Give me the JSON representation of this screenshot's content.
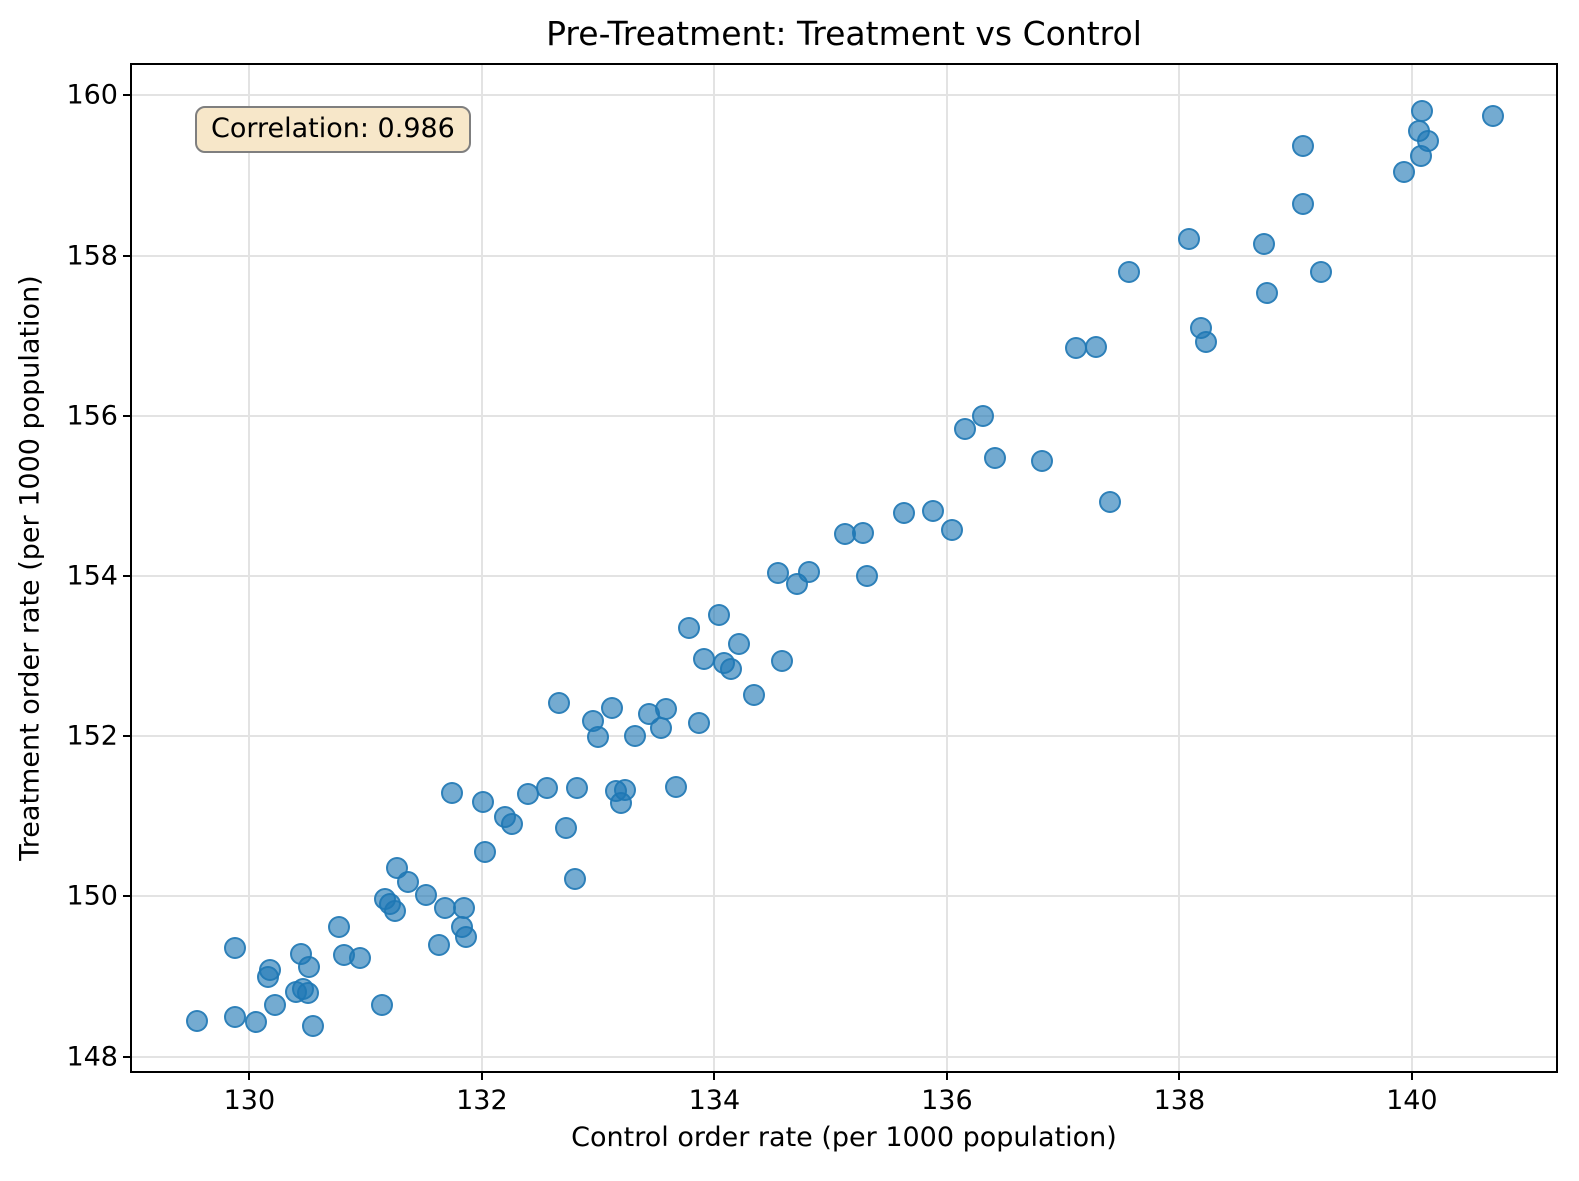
{
  "title": "Pre-Treatment: Treatment vs Control",
  "annotation": {
    "label": "Correlation: 0.986"
  },
  "chart_data": {
    "type": "scatter",
    "title": "Pre-Treatment: Treatment vs Control",
    "xlabel": "Control order rate (per 1000 population)",
    "ylabel": "Treatment order rate (per 1000 population)",
    "xlim": [
      128.99,
      141.24
    ],
    "ylim": [
      147.82,
      160.38
    ],
    "x_ticks": [
      130,
      132,
      134,
      136,
      138,
      140
    ],
    "y_ticks": [
      148,
      150,
      152,
      154,
      156,
      158,
      160
    ],
    "grid": true,
    "legend": "none",
    "marker_color": "#1f77b4",
    "marker_alpha": 0.62,
    "annotation_text": "Correlation: 0.986",
    "annotation_bg": "#f7e7c9",
    "points": [
      [
        129.55,
        148.44
      ],
      [
        129.88,
        148.49
      ],
      [
        130.06,
        148.43
      ],
      [
        129.88,
        149.35
      ],
      [
        130.18,
        149.08
      ],
      [
        130.16,
        148.99
      ],
      [
        130.22,
        148.64
      ],
      [
        130.44,
        149.28
      ],
      [
        130.4,
        148.81
      ],
      [
        130.46,
        148.84
      ],
      [
        130.5,
        148.8
      ],
      [
        130.51,
        149.12
      ],
      [
        130.55,
        148.38
      ],
      [
        130.77,
        149.62
      ],
      [
        130.81,
        149.27
      ],
      [
        130.95,
        149.23
      ],
      [
        131.14,
        148.64
      ],
      [
        131.27,
        150.35
      ],
      [
        131.36,
        150.18
      ],
      [
        131.17,
        149.97
      ],
      [
        131.21,
        149.91
      ],
      [
        131.25,
        149.82
      ],
      [
        131.52,
        150.02
      ],
      [
        131.68,
        149.85
      ],
      [
        131.85,
        149.86
      ],
      [
        131.63,
        149.39
      ],
      [
        131.83,
        149.62
      ],
      [
        131.86,
        149.49
      ],
      [
        131.74,
        151.29
      ],
      [
        132.01,
        151.18
      ],
      [
        132.2,
        150.99
      ],
      [
        132.26,
        150.9
      ],
      [
        132.03,
        150.56
      ],
      [
        132.4,
        151.28
      ],
      [
        132.56,
        151.35
      ],
      [
        132.72,
        150.85
      ],
      [
        132.8,
        150.22
      ],
      [
        132.82,
        151.35
      ],
      [
        132.66,
        152.41
      ],
      [
        132.96,
        152.19
      ],
      [
        133.0,
        151.99
      ],
      [
        133.12,
        152.35
      ],
      [
        133.15,
        151.31
      ],
      [
        133.23,
        151.33
      ],
      [
        133.2,
        151.17
      ],
      [
        133.32,
        152.0
      ],
      [
        133.44,
        152.28
      ],
      [
        133.54,
        152.1
      ],
      [
        133.58,
        152.34
      ],
      [
        133.87,
        152.17
      ],
      [
        133.67,
        151.37
      ],
      [
        134.34,
        152.51
      ],
      [
        133.78,
        153.35
      ],
      [
        134.04,
        153.51
      ],
      [
        134.21,
        153.15
      ],
      [
        133.91,
        152.96
      ],
      [
        134.08,
        152.91
      ],
      [
        134.14,
        152.84
      ],
      [
        134.58,
        152.94
      ],
      [
        134.55,
        154.04
      ],
      [
        134.71,
        153.9
      ],
      [
        134.81,
        154.05
      ],
      [
        135.12,
        154.52
      ],
      [
        135.28,
        154.54
      ],
      [
        135.31,
        154.0
      ],
      [
        135.63,
        154.79
      ],
      [
        135.88,
        154.81
      ],
      [
        136.04,
        154.57
      ],
      [
        136.16,
        155.83
      ],
      [
        136.31,
        156.0
      ],
      [
        136.41,
        155.47
      ],
      [
        136.82,
        155.44
      ],
      [
        137.4,
        154.93
      ],
      [
        137.57,
        157.8
      ],
      [
        137.11,
        156.85
      ],
      [
        137.28,
        156.86
      ],
      [
        138.19,
        157.1
      ],
      [
        138.23,
        156.92
      ],
      [
        138.75,
        157.53
      ],
      [
        139.22,
        157.8
      ],
      [
        138.08,
        158.21
      ],
      [
        138.73,
        158.15
      ],
      [
        139.06,
        158.64
      ],
      [
        139.06,
        159.37
      ],
      [
        140.09,
        159.81
      ],
      [
        140.06,
        159.55
      ],
      [
        140.14,
        159.43
      ],
      [
        140.08,
        159.25
      ],
      [
        139.93,
        159.04
      ],
      [
        140.7,
        159.74
      ]
    ]
  }
}
